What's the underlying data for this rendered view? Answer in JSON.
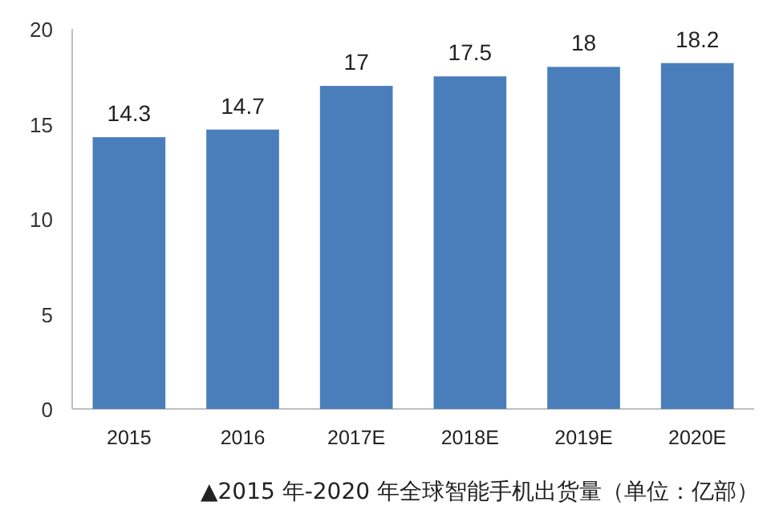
{
  "chart_data": {
    "type": "bar",
    "categories": [
      "2015",
      "2016",
      "2017E",
      "2018E",
      "2019E",
      "2020E"
    ],
    "values": [
      14.3,
      14.7,
      17,
      17.5,
      18,
      18.2
    ],
    "color": "#4a7ebb",
    "ylim": [
      0,
      20
    ],
    "yticks": [
      0,
      5,
      10,
      15,
      20
    ],
    "data_labels": true,
    "grid": false,
    "annotations": [
      "▲2015 年-2020 年全球智能手机出货量（单位：亿部）"
    ]
  }
}
